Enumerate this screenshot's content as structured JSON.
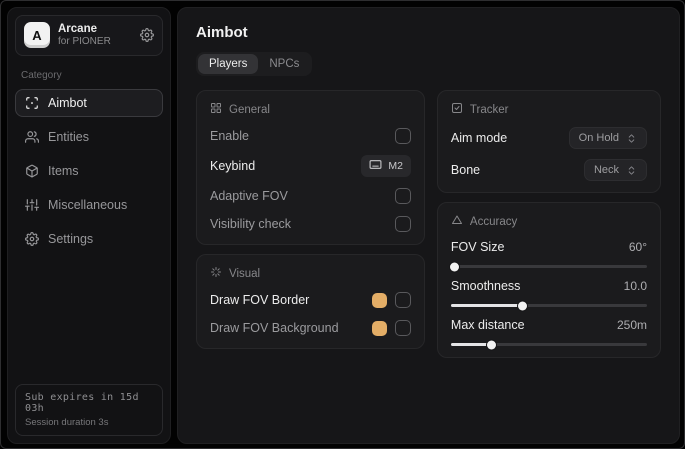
{
  "app": {
    "name": "Arcane",
    "subtitle": "for PIONER",
    "logo_letter": "A"
  },
  "sidebar": {
    "category_label": "Category",
    "items": [
      {
        "label": "Aimbot",
        "icon": "crosshair-icon",
        "active": true
      },
      {
        "label": "Entities",
        "icon": "users-icon",
        "active": false
      },
      {
        "label": "Items",
        "icon": "package-icon",
        "active": false
      },
      {
        "label": "Miscellaneous",
        "icon": "sliders-icon",
        "active": false
      },
      {
        "label": "Settings",
        "icon": "gear-icon",
        "active": false
      }
    ],
    "footer": {
      "sub_expires": "Sub expires in 15d 03h",
      "session_duration": "Session duration 3s"
    }
  },
  "main": {
    "title": "Aimbot",
    "tabs": [
      {
        "label": "Players",
        "active": true
      },
      {
        "label": "NPCs",
        "active": false
      }
    ],
    "panels": {
      "general": {
        "title": "General",
        "rows": [
          {
            "label": "Enable",
            "control": "checkbox",
            "checked": false
          },
          {
            "label": "Keybind",
            "control": "keybind",
            "value": "M2"
          },
          {
            "label": "Adaptive FOV",
            "control": "checkbox",
            "checked": false
          },
          {
            "label": "Visibility check",
            "control": "checkbox",
            "checked": false
          }
        ]
      },
      "visual": {
        "title": "Visual",
        "rows": [
          {
            "label": "Draw FOV Border",
            "control": "color-checkbox",
            "color": "#e3ad66",
            "checked": false
          },
          {
            "label": "Draw FOV Background",
            "control": "color-checkbox",
            "color": "#e3ad66",
            "checked": false
          }
        ]
      },
      "tracker": {
        "title": "Tracker",
        "rows": [
          {
            "label": "Aim mode",
            "value": "On Hold"
          },
          {
            "label": "Bone",
            "value": "Neck"
          }
        ]
      },
      "accuracy": {
        "title": "Accuracy",
        "sliders": [
          {
            "label": "FOV Size",
            "value": "60°",
            "percent": 2
          },
          {
            "label": "Smoothness",
            "value": "10.0",
            "percent": 37
          },
          {
            "label": "Max distance",
            "value": "250m",
            "percent": 21
          }
        ]
      }
    }
  },
  "colors": {
    "swatch_accent": "#e3ad66"
  }
}
